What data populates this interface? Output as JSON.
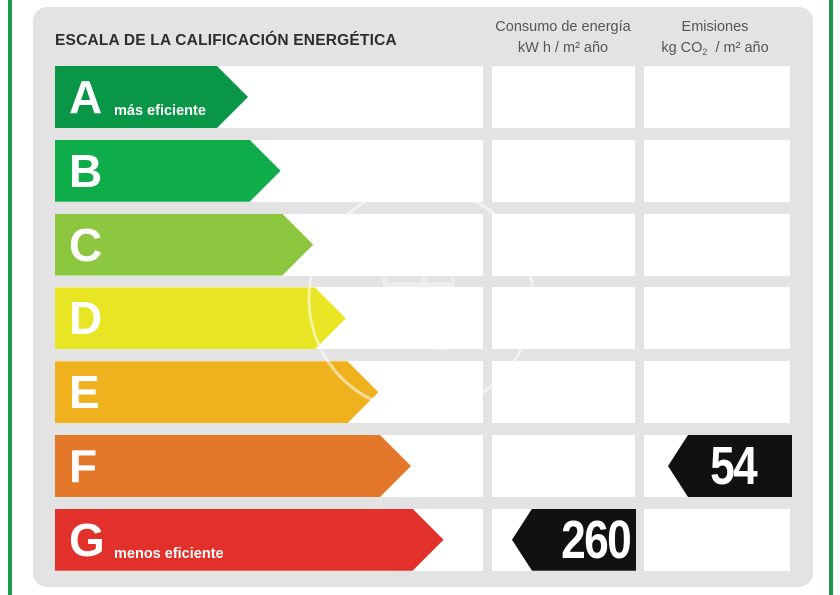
{
  "title": "ESCALA DE LA CALIFICACIÓN ENERGÉTICA",
  "columns": {
    "consumo": {
      "line1": "Consumo de energía",
      "line2": "kW h  / m² año"
    },
    "emisiones": {
      "line1": "Emisiones",
      "line2_pre": "kg CO",
      "line2_sub": "2",
      "line2_post": "  / m² año"
    }
  },
  "ratings": [
    {
      "letter": "A",
      "label": "más eficiente",
      "color": "#0a9647"
    },
    {
      "letter": "B",
      "label": "",
      "color": "#0fad4a"
    },
    {
      "letter": "C",
      "label": "",
      "color": "#8dc63f"
    },
    {
      "letter": "D",
      "label": "",
      "color": "#e8e525"
    },
    {
      "letter": "E",
      "label": "",
      "color": "#efb21e"
    },
    {
      "letter": "F",
      "label": "",
      "color": "#e3772a"
    },
    {
      "letter": "G",
      "label": "menos eficiente",
      "color": "#e2312a"
    }
  ],
  "consumption": {
    "value": "260",
    "rating": "G"
  },
  "emissions": {
    "value": "54",
    "rating": "F"
  },
  "watermark": "aP"
}
